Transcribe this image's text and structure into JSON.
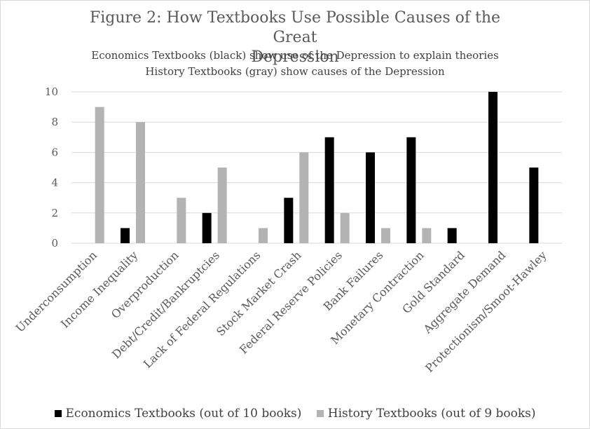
{
  "chart_data": {
    "type": "bar",
    "title": "Figure 2: How Textbooks Use Possible Causes of the Great Depression",
    "title_lines": [
      "Figure 2: How Textbooks Use Possible Causes of the Great",
      "Depression"
    ],
    "subtitle_lines": [
      "Economics Textbooks (black) show use of the Depression to explain theories",
      "History Textbooks (gray) show causes of the Depression"
    ],
    "categories": [
      "Underconsumption",
      "Income Inequality",
      "Overproduction",
      "Debt/Credit/Bankruptcies",
      "Lack of Federal Regulations",
      "Stock Market Crash",
      "Federal Reserve Policies",
      "Bank Failures",
      "Monetary Contraction",
      "Gold Standard",
      "Aggregate Demand",
      "Protectionism/Smoot-Hawley"
    ],
    "series": [
      {
        "name": "Economics Textbooks (out of 10 books)",
        "color": "#000000",
        "values": [
          0,
          1,
          0,
          2,
          0,
          3,
          7,
          6,
          7,
          1,
          10,
          5
        ]
      },
      {
        "name": "History Textbooks (out of 9 books)",
        "color": "#b3b3b3",
        "values": [
          9,
          8,
          3,
          5,
          1,
          6,
          2,
          1,
          1,
          0,
          0,
          0
        ]
      }
    ],
    "ylim": [
      0,
      10
    ],
    "yticks": [
      "0",
      "2",
      "4",
      "6",
      "8",
      "10"
    ],
    "grid": true,
    "legend_position": "bottom"
  }
}
